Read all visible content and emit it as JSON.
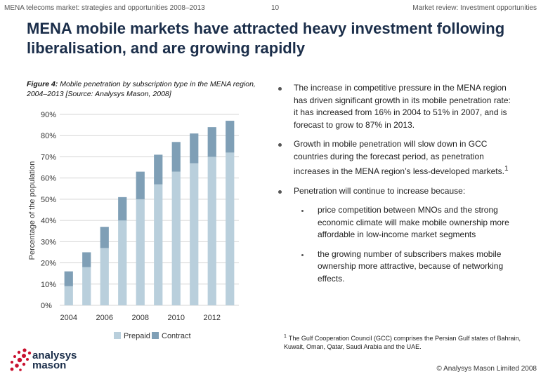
{
  "header": {
    "left": "MENA telecoms market: strategies and opportunities 2008–2013",
    "page_number": "10",
    "right": "Market review: Investment opportunities"
  },
  "title": "MENA mobile markets have attracted heavy investment following liberalisation, and are growing rapidly",
  "figure_caption": {
    "label": "Figure 4:",
    "text": " Mobile penetration by subscription type in the MENA region, 2004–2013 [Source: Analysys Mason, 2008]"
  },
  "chart_data": {
    "type": "bar",
    "stacked": true,
    "x": [
      2004,
      2005,
      2006,
      2007,
      2008,
      2009,
      2010,
      2011,
      2012,
      2013
    ],
    "x_tick_labels": [
      "2004",
      "2006",
      "2008",
      "2010",
      "2012"
    ],
    "y_tick_labels": [
      "0%",
      "10%",
      "20%",
      "30%",
      "40%",
      "50%",
      "60%",
      "70%",
      "80%",
      "90%"
    ],
    "ylabel": "Percentage of the population",
    "ylim": [
      0,
      90
    ],
    "series": [
      {
        "name": "Prepaid",
        "color": "#b9cfdc",
        "values": [
          9,
          18,
          27,
          40,
          50,
          57,
          63,
          67,
          70,
          72
        ]
      },
      {
        "name": "Contract",
        "color": "#7f9fb6",
        "values": [
          7,
          7,
          10,
          11,
          13,
          14,
          14,
          14,
          14,
          15
        ]
      }
    ],
    "grid": "horizontal",
    "legend": "bottom"
  },
  "bullets": [
    {
      "text": "The increase in competitive pressure in the MENA region has driven significant growth in its mobile penetration rate: it has increased from 16% in 2004 to 51% in 2007, and is forecast to grow to 87% in 2013."
    },
    {
      "text": "Growth in mobile penetration will slow down in GCC countries during the forecast period, as penetration increases in the MENA region’s less-developed markets.",
      "note": "1"
    },
    {
      "text": "Penetration will continue to increase because:"
    }
  ],
  "sub_bullets": [
    "price competition between MNOs and the strong economic climate will make mobile ownership more affordable in low-income market segments",
    "the growing number of subscribers makes mobile ownership more attractive, because of networking effects."
  ],
  "footnote": {
    "marker": "1",
    "text": "The Gulf Cooperation Council (GCC) comprises the Persian Gulf states of Bahrain, Kuwait, Oman, Qatar, Saudi Arabia and the UAE."
  },
  "logo": {
    "line1": "analysys",
    "line2": "mason",
    "color": "#c8102e"
  },
  "copyright": "© Analysys Mason Limited 2008"
}
